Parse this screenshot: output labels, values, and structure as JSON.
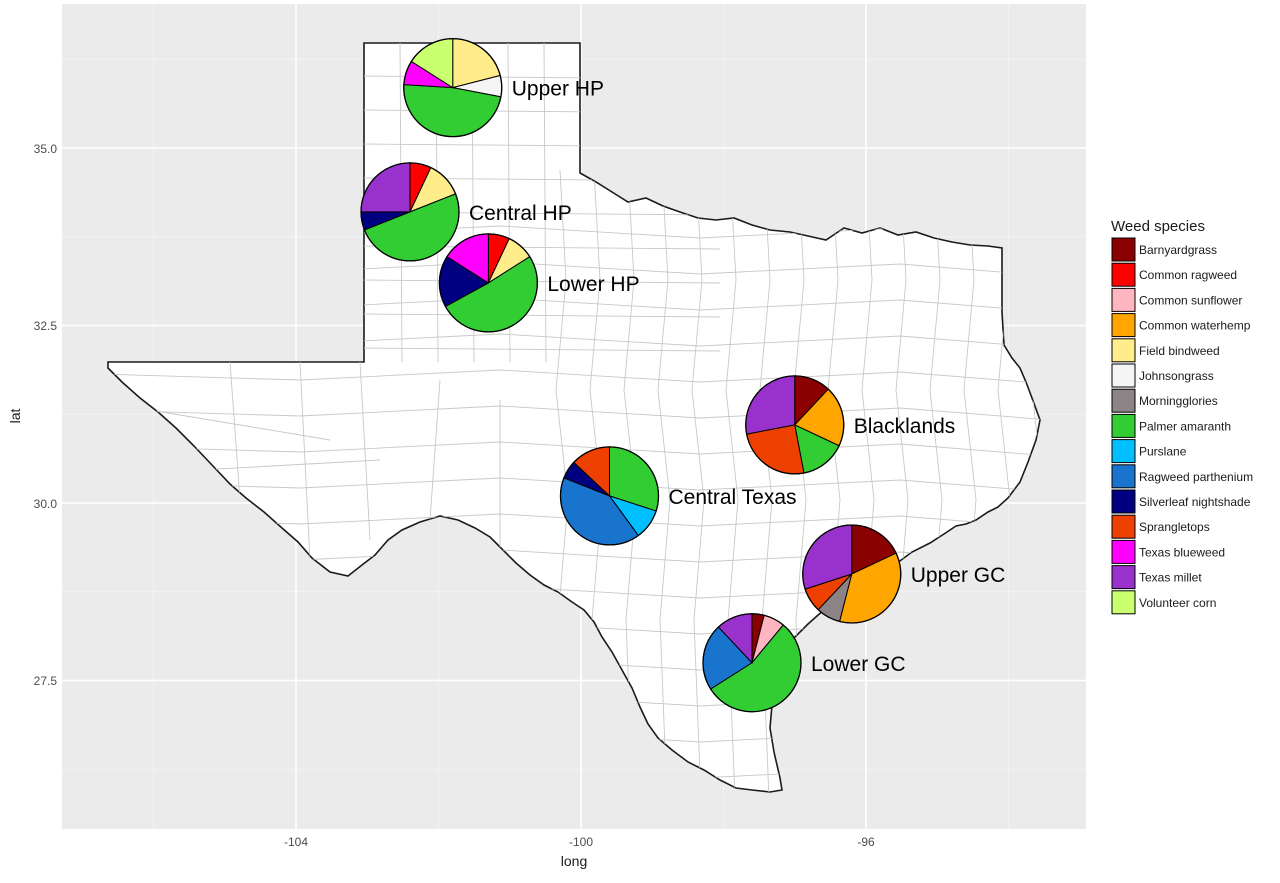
{
  "chart_data": {
    "type": "pie",
    "xlabel": "long",
    "ylabel": "lat",
    "x_ticks": [
      "-104",
      "-100",
      "-96"
    ],
    "y_ticks": [
      "27.5",
      "30.0",
      "32.5",
      "35.0"
    ],
    "xlim": [
      -107.2,
      -93.0
    ],
    "ylim": [
      25.4,
      37.2
    ],
    "legend": {
      "title": "Weed species",
      "placement": "right",
      "items": [
        {
          "label": "Barnyardgrass",
          "color": "#8B0000"
        },
        {
          "label": "Common ragweed",
          "color": "#FF0000"
        },
        {
          "label": "Common sunflower",
          "color": "#FFB6C1"
        },
        {
          "label": "Common waterhemp",
          "color": "#FFA500"
        },
        {
          "label": "Field bindweed",
          "color": "#FFEC8B"
        },
        {
          "label": "Johnsongrass",
          "color": "#F5F5F5"
        },
        {
          "label": "Morningglories",
          "color": "#8B8386"
        },
        {
          "label": "Palmer amaranth",
          "color": "#32CD32"
        },
        {
          "label": "Purslane",
          "color": "#00BFFF"
        },
        {
          "label": "Ragweed parthenium",
          "color": "#1874CD"
        },
        {
          "label": "Silverleaf nightshade",
          "color": "#000080"
        },
        {
          "label": "Sprangletops",
          "color": "#EE4000"
        },
        {
          "label": "Texas blueweed",
          "color": "#FF00FF"
        },
        {
          "label": "Texas millet",
          "color": "#9932CC"
        },
        {
          "label": "Volunteer corn",
          "color": "#CAFF70"
        }
      ]
    },
    "regions": [
      {
        "name": "Upper HP",
        "long": -101.8,
        "lat": 35.85,
        "slices": [
          {
            "species": "Field bindweed",
            "value": 0.21
          },
          {
            "species": "Johnsongrass",
            "value": 0.07
          },
          {
            "species": "Palmer amaranth",
            "value": 0.48
          },
          {
            "species": "Texas blueweed",
            "value": 0.08
          },
          {
            "species": "Volunteer corn",
            "value": 0.16
          }
        ]
      },
      {
        "name": "Central HP",
        "long": -102.4,
        "lat": 34.1,
        "slices": [
          {
            "species": "Common ragweed",
            "value": 0.07
          },
          {
            "species": "Field bindweed",
            "value": 0.12
          },
          {
            "species": "Palmer amaranth",
            "value": 0.5
          },
          {
            "species": "Silverleaf nightshade",
            "value": 0.06
          },
          {
            "species": "Texas millet",
            "value": 0.25
          }
        ]
      },
      {
        "name": "Lower HP",
        "long": -101.3,
        "lat": 33.1,
        "slices": [
          {
            "species": "Common ragweed",
            "value": 0.07
          },
          {
            "species": "Field bindweed",
            "value": 0.09
          },
          {
            "species": "Palmer amaranth",
            "value": 0.51
          },
          {
            "species": "Silverleaf nightshade",
            "value": 0.17
          },
          {
            "species": "Texas blueweed",
            "value": 0.16
          }
        ]
      },
      {
        "name": "Blacklands",
        "long": -97.0,
        "lat": 31.1,
        "slices": [
          {
            "species": "Barnyardgrass",
            "value": 0.12
          },
          {
            "species": "Common waterhemp",
            "value": 0.2
          },
          {
            "species": "Palmer amaranth",
            "value": 0.15
          },
          {
            "species": "Sprangletops",
            "value": 0.25
          },
          {
            "species": "Texas millet",
            "value": 0.28
          }
        ]
      },
      {
        "name": "Central Texas",
        "long": -99.6,
        "lat": 30.1,
        "slices": [
          {
            "species": "Palmer amaranth",
            "value": 0.3
          },
          {
            "species": "Purslane",
            "value": 0.1
          },
          {
            "species": "Ragweed parthenium",
            "value": 0.41
          },
          {
            "species": "Silverleaf nightshade",
            "value": 0.06
          },
          {
            "species": "Sprangletops",
            "value": 0.13
          }
        ]
      },
      {
        "name": "Upper GC",
        "long": -96.2,
        "lat": 29.0,
        "slices": [
          {
            "species": "Barnyardgrass",
            "value": 0.18
          },
          {
            "species": "Common waterhemp",
            "value": 0.36
          },
          {
            "species": "Morningglories",
            "value": 0.08
          },
          {
            "species": "Sprangletops",
            "value": 0.08
          },
          {
            "species": "Texas millet",
            "value": 0.3
          }
        ]
      },
      {
        "name": "Lower GC",
        "long": -97.6,
        "lat": 27.75,
        "slices": [
          {
            "species": "Barnyardgrass",
            "value": 0.04
          },
          {
            "species": "Common sunflower",
            "value": 0.07
          },
          {
            "species": "Palmer amaranth",
            "value": 0.55
          },
          {
            "species": "Ragweed parthenium",
            "value": 0.22
          },
          {
            "species": "Texas millet",
            "value": 0.12
          }
        ]
      }
    ]
  }
}
